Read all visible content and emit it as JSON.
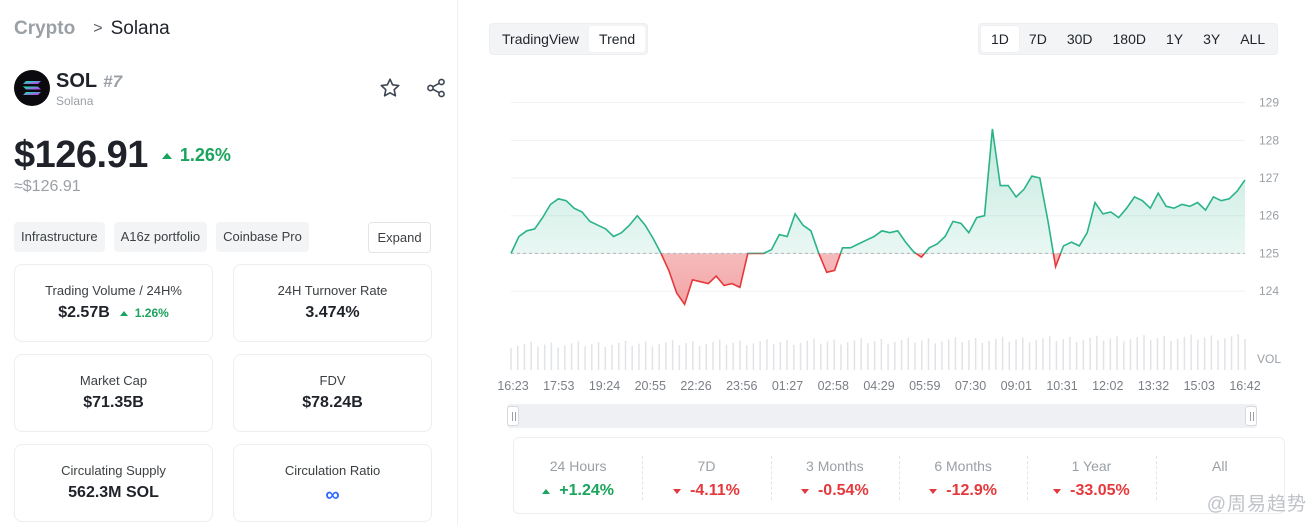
{
  "breadcrumb": {
    "root": "Crypto",
    "sep": ">",
    "current": "Solana"
  },
  "coin": {
    "symbol": "SOL",
    "rank": "#7",
    "name": "Solana"
  },
  "icons": {
    "favorite": "star-icon",
    "share": "share-icon",
    "logo": "solana-logo"
  },
  "price": {
    "value": "$126.91",
    "change": "1.26%",
    "approx": "≈$126.91"
  },
  "tags": [
    "Infrastructure",
    "A16z portfolio",
    "Coinbase Pro"
  ],
  "expand_label": "Expand",
  "stats": {
    "volume": {
      "label": "Trading Volume / 24H%",
      "value": "$2.57B",
      "change": "1.26%"
    },
    "turnover": {
      "label": "24H Turnover Rate",
      "value": "3.474%"
    },
    "market_cap": {
      "label": "Market Cap",
      "value": "$71.35B"
    },
    "fdv": {
      "label": "FDV",
      "value": "$78.24B"
    },
    "circulating": {
      "label": "Circulating Supply",
      "value": "562.3M SOL"
    },
    "ratio": {
      "label": "Circulation Ratio",
      "value": "∞"
    }
  },
  "chart_tabs": {
    "tradingview": "TradingView",
    "trend": "Trend"
  },
  "ranges": [
    "1D",
    "7D",
    "30D",
    "180D",
    "1Y",
    "3Y",
    "ALL"
  ],
  "active_range": "1D",
  "colors": {
    "up": "#1aa45c",
    "down": "#e5383b",
    "line": "#2ab38a",
    "accent": "#2f6bff"
  },
  "chart_data": {
    "type": "area",
    "title": "",
    "baseline": 125,
    "ylim": [
      123.5,
      129.6
    ],
    "yticks": [
      124,
      125,
      126,
      127,
      128,
      129
    ],
    "ylabel_extra": "VOL",
    "x_ticks": [
      "16:23",
      "17:53",
      "19:24",
      "20:55",
      "22:26",
      "23:56",
      "01:27",
      "02:58",
      "04:29",
      "05:59",
      "07:30",
      "09:01",
      "10:31",
      "12:02",
      "13:32",
      "15:03",
      "16:42"
    ],
    "series": [
      {
        "values": [
          125.0,
          125.45,
          125.6,
          125.65,
          125.95,
          126.3,
          126.45,
          126.4,
          126.2,
          126.1,
          125.85,
          125.75,
          125.65,
          125.45,
          125.55,
          125.75,
          126.0,
          125.75,
          125.4,
          125.0,
          124.55,
          123.95,
          123.65,
          124.3,
          124.25,
          124.2,
          124.4,
          124.15,
          124.2,
          124.1,
          125.0,
          125.0,
          125.0,
          125.1,
          125.5,
          125.45,
          126.05,
          125.75,
          125.6,
          125.0,
          124.5,
          124.55,
          125.15,
          125.15,
          125.25,
          125.35,
          125.45,
          125.6,
          125.55,
          125.6,
          125.3,
          125.05,
          124.9,
          125.15,
          125.25,
          125.45,
          125.85,
          125.8,
          125.55,
          125.95,
          126.0,
          128.3,
          126.8,
          126.8,
          126.5,
          126.7,
          127.05,
          127.0,
          125.9,
          124.65,
          125.2,
          125.3,
          125.2,
          125.55,
          126.35,
          126.05,
          126.1,
          125.95,
          126.2,
          126.5,
          126.4,
          126.2,
          126.6,
          126.25,
          126.2,
          126.3,
          126.25,
          126.35,
          126.15,
          126.5,
          126.4,
          126.45,
          126.65,
          126.95
        ]
      }
    ]
  },
  "perf": [
    {
      "label": "24 Hours",
      "value": "+1.24%",
      "dir": "up"
    },
    {
      "label": "7D",
      "value": "-4.11%",
      "dir": "down"
    },
    {
      "label": "3 Months",
      "value": "-0.54%",
      "dir": "down"
    },
    {
      "label": "6 Months",
      "value": "-12.9%",
      "dir": "down"
    },
    {
      "label": "1 Year",
      "value": "-33.05%",
      "dir": "down"
    },
    {
      "label": "All",
      "value": "",
      "dir": "none"
    }
  ],
  "watermark": "@周易趋势"
}
